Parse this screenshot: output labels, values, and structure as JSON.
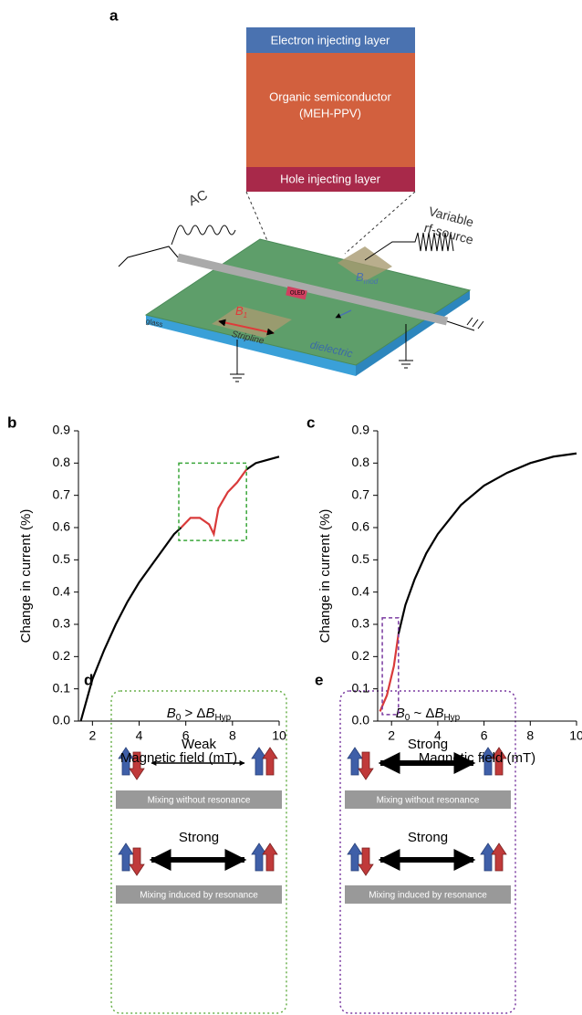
{
  "chart_data": [
    {
      "type": "line",
      "panel": "b",
      "xlabel": "Magnetic field (mT)",
      "ylabel": "Change in current (%)",
      "x": [
        1.5,
        2,
        2.5,
        3,
        3.5,
        4,
        4.5,
        5,
        5.5,
        5.8,
        6.2,
        6.6,
        7.0,
        7.2,
        7.4,
        7.8,
        8.2,
        8.6,
        9,
        9.5,
        10
      ],
      "series": [
        {
          "color": "#000000",
          "values": [
            0,
            0.13,
            0.22,
            0.3,
            0.37,
            0.43,
            0.48,
            0.53,
            0.58,
            0.6,
            null,
            null,
            null,
            null,
            null,
            null,
            null,
            0.78,
            0.8,
            0.81,
            0.82
          ]
        },
        {
          "color": "#d93a3a",
          "values": [
            null,
            null,
            null,
            null,
            null,
            null,
            null,
            null,
            null,
            0.6,
            0.63,
            0.63,
            0.61,
            0.58,
            0.66,
            0.71,
            0.74,
            0.78,
            null,
            null,
            null
          ]
        }
      ],
      "highlight": {
        "xlim": [
          5.7,
          8.6
        ],
        "ylim": [
          0.56,
          0.8
        ],
        "color": "#3aa63a"
      },
      "xlim": [
        1.4,
        10
      ],
      "xticks": [
        2,
        4,
        6,
        8,
        10
      ],
      "ylim": [
        0,
        0.9
      ],
      "yticks": [
        {
          "value": 0,
          "label": "0.0"
        },
        0.1,
        0.2,
        0.3,
        0.4,
        0.5,
        0.6,
        0.7,
        0.8,
        0.9
      ]
    },
    {
      "type": "line",
      "panel": "c",
      "xlabel": "Magnetic field (mT)",
      "ylabel": "Change in current (%)",
      "x": [
        1.5,
        1.8,
        2.1,
        2.3,
        2.6,
        3,
        3.5,
        4,
        5,
        6,
        7,
        8,
        9,
        10
      ],
      "series": [
        {
          "color": "#d93a3a",
          "values": [
            0.03,
            0.08,
            0.17,
            0.27,
            null,
            null,
            null,
            null,
            null,
            null,
            null,
            null,
            null,
            null
          ]
        },
        {
          "color": "#000000",
          "values": [
            null,
            null,
            null,
            0.27,
            0.36,
            0.44,
            0.52,
            0.58,
            0.67,
            0.73,
            0.77,
            0.8,
            0.82,
            0.83
          ]
        }
      ],
      "highlight": {
        "xlim": [
          1.6,
          2.3
        ],
        "ylim": [
          0.02,
          0.32
        ],
        "color": "#7a3aa0"
      },
      "xlim": [
        1.4,
        10
      ],
      "xticks": [
        2,
        4,
        6,
        8,
        10
      ],
      "ylim": [
        0,
        0.9
      ],
      "yticks": [
        {
          "value": 0,
          "label": "0.0"
        },
        0.1,
        0.2,
        0.3,
        0.4,
        0.5,
        0.6,
        0.7,
        0.8,
        0.9
      ]
    }
  ],
  "panel_a": {
    "label": "a",
    "electron_layer": "Electron injecting layer",
    "semiconductor": "Organic semiconductor",
    "material": "(MEH-PPV)",
    "hole_layer": "Hole injecting layer",
    "ac": "AC",
    "rf1": "Variable",
    "rf2": "rf-source",
    "glass": "glass",
    "stripline": "Stripline",
    "dielectric": "dielectric",
    "b1": [
      "B",
      "1"
    ],
    "bmod": [
      "B",
      "mod"
    ],
    "oled": "OLED"
  },
  "panel_d": {
    "label": "d",
    "condition": [
      "B",
      "0",
      " > Δ",
      "B",
      "Hyp"
    ],
    "top_arrow": "Weak",
    "top_caption": "Mixing without resonance",
    "bottom_arrow": "Strong",
    "bottom_caption": "Mixing induced by resonance"
  },
  "panel_e": {
    "label": "e",
    "condition": [
      "B",
      "0",
      " ~ Δ",
      "B",
      "Hyp"
    ],
    "top_arrow": "Strong",
    "top_caption": "Mixing without resonance",
    "bottom_arrow": "Strong",
    "bottom_caption": "Mixing induced by resonance"
  }
}
